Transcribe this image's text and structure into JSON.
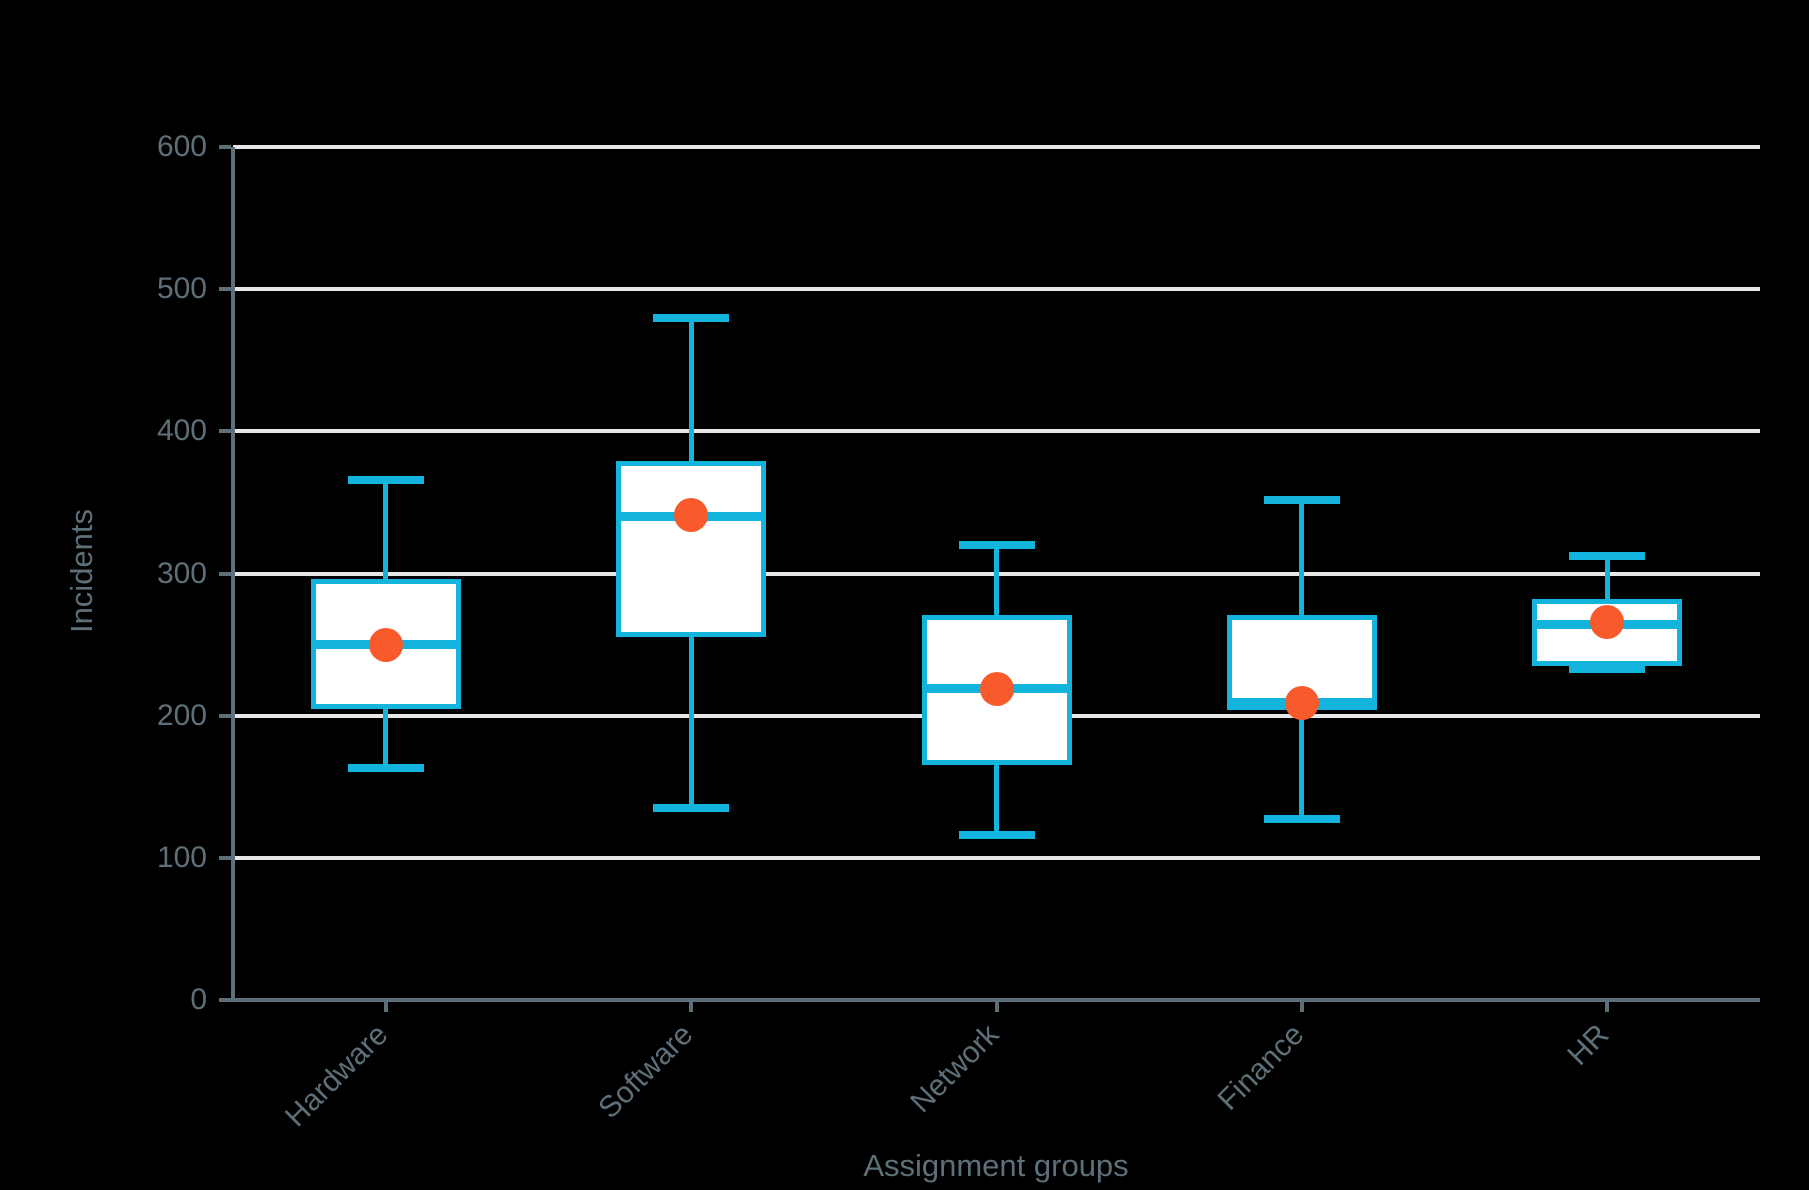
{
  "chart_data": {
    "type": "boxplot",
    "title": "",
    "xlabel": "Assignment groups",
    "ylabel": "Incidents",
    "ylim": [
      0,
      600
    ],
    "yticks": [
      0,
      100,
      200,
      300,
      400,
      500,
      600
    ],
    "grid": "horizontal-gridlines-at-100-intervals",
    "legend": "none",
    "categories": [
      "Hardware",
      "Software",
      "Network",
      "Finance",
      "HR"
    ],
    "series": [
      {
        "name": "Hardware",
        "min": 163,
        "q1": 205,
        "median": 250,
        "q3": 296,
        "max": 366,
        "mean": 250
      },
      {
        "name": "Software",
        "min": 135,
        "q1": 255,
        "median": 340,
        "q3": 379,
        "max": 480,
        "mean": 341
      },
      {
        "name": "Network",
        "min": 116,
        "q1": 165,
        "median": 219,
        "q3": 271,
        "max": 320,
        "mean": 219
      },
      {
        "name": "Finance",
        "min": 127,
        "q1": 204,
        "median": 209,
        "q3": 271,
        "max": 352,
        "mean": 209
      },
      {
        "name": "HR",
        "min": 233,
        "q1": 235,
        "median": 264,
        "q3": 282,
        "max": 312,
        "mean": 266
      }
    ],
    "colors": {
      "box_stroke": "#12b4de",
      "box_fill": "#ffffff",
      "median": "#12b4de",
      "mean_dot": "#f85a2c",
      "gridline": "#e7e7e7",
      "axis": "#5d6f79",
      "label_text": "#5d6f79",
      "background": "#000000"
    }
  }
}
